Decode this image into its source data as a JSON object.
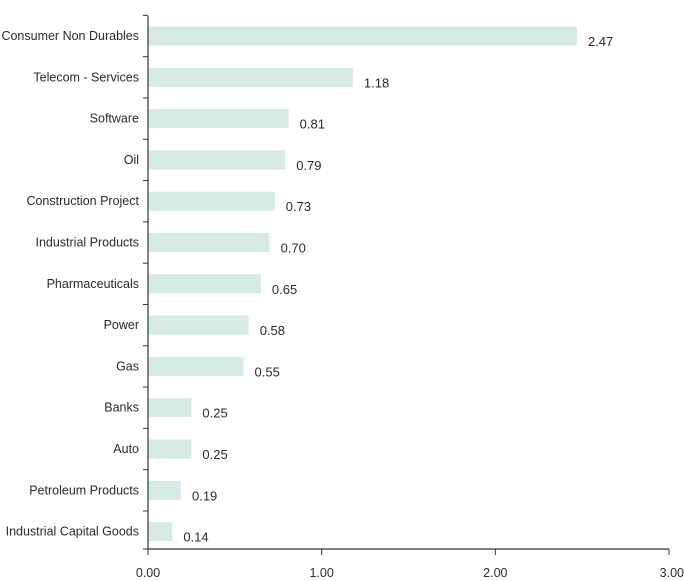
{
  "chart_data": {
    "type": "bar",
    "orientation": "horizontal",
    "categories": [
      "Consumer Non Durables",
      "Telecom - Services",
      "Software",
      "Oil",
      "Construction Project",
      "Industrial Products",
      "Pharmaceuticals",
      "Power",
      "Gas",
      "Banks",
      "Auto",
      "Petroleum Products",
      "Industrial Capital Goods"
    ],
    "values": [
      2.47,
      1.18,
      0.81,
      0.79,
      0.73,
      0.7,
      0.65,
      0.58,
      0.55,
      0.25,
      0.25,
      0.19,
      0.14
    ],
    "value_labels": [
      "2.47",
      "1.18",
      "0.81",
      "0.79",
      "0.73",
      "0.70",
      "0.65",
      "0.58",
      "0.55",
      "0.25",
      "0.25",
      "0.19",
      "0.14"
    ],
    "x_ticks": [
      0,
      1,
      2,
      3
    ],
    "x_tick_labels": [
      "0.00",
      "1.00",
      "2.00",
      "3.00"
    ],
    "xlim": [
      0,
      3
    ],
    "title": "",
    "xlabel": "",
    "ylabel": "",
    "grid": false,
    "bar_color": "#d6ebe3",
    "axis_color": "#333333"
  }
}
